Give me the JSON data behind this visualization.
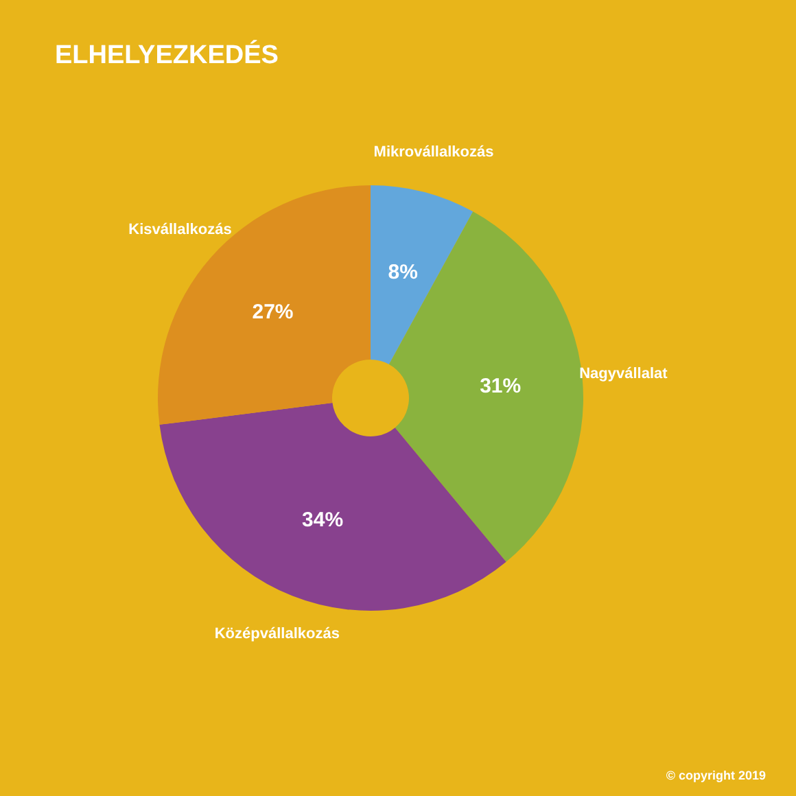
{
  "chart_data": {
    "type": "donut",
    "title": "ELHELYEZKEDÉS",
    "categories": [
      "Mikrovállalkozás",
      "Nagyvállalat",
      "Középvállalkozás",
      "Kisvállalkozás"
    ],
    "values": [
      8,
      31,
      34,
      27
    ],
    "colors": [
      "#62a7dc",
      "#8ab33e",
      "#88418e",
      "#dd8f1f"
    ],
    "value_labels": [
      "8%",
      "31%",
      "34%",
      "27%"
    ],
    "annotations": [
      "© copyright 2019"
    ]
  }
}
